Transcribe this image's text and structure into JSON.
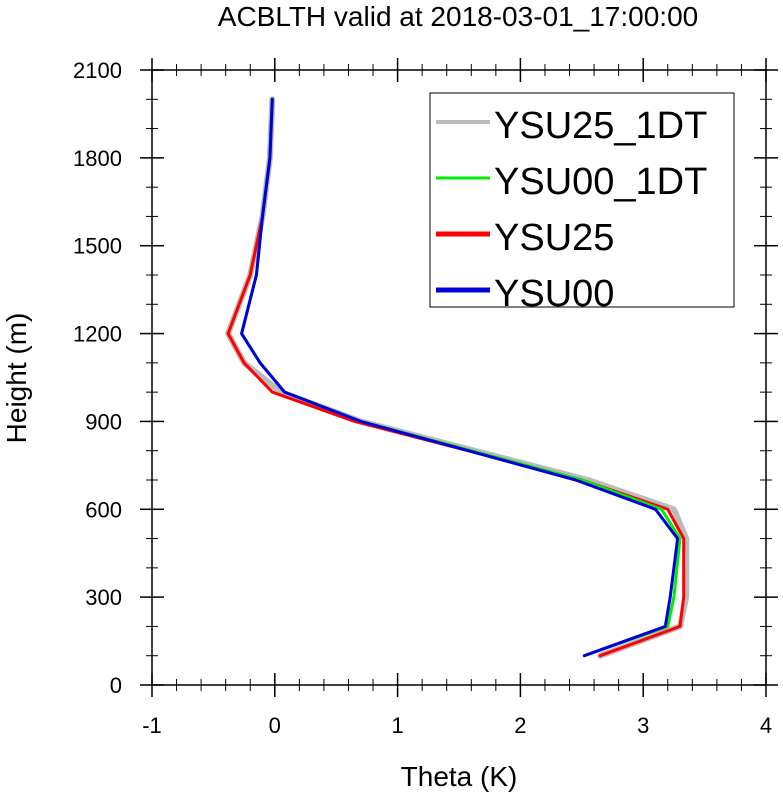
{
  "chart_data": {
    "type": "line",
    "title": "ACBLTH valid at 2018-03-01_17:00:00",
    "xlabel": "Theta (K)",
    "ylabel": "Height (m)",
    "xlim": [
      -1,
      4
    ],
    "ylim": [
      0,
      2100
    ],
    "xticks": [
      -1,
      0,
      1,
      2,
      3,
      4
    ],
    "xtick_labels": [
      "-1",
      "0",
      "1",
      "2",
      "3",
      "4"
    ],
    "yticks": [
      0,
      300,
      600,
      900,
      1200,
      1500,
      1800,
      2100
    ],
    "ytick_labels": [
      "0",
      "300",
      "600",
      "900",
      "1200",
      "1500",
      "1800",
      "2100"
    ],
    "grid": false,
    "legend_position": "top-right",
    "series": [
      {
        "name": "YSU25_1DT",
        "color": "#bbbbbb",
        "x": [
          -0.02,
          -0.04,
          -0.1,
          -0.2,
          -0.38,
          -0.25,
          0.05,
          0.7,
          2.55,
          3.25,
          3.35,
          3.35,
          3.3,
          2.65
        ],
        "y": [
          2000,
          1800,
          1600,
          1400,
          1200,
          1100,
          1000,
          900,
          700,
          600,
          500,
          300,
          200,
          100
        ]
      },
      {
        "name": "YSU00_1DT",
        "color": "#00ee00",
        "x": [
          -0.02,
          -0.04,
          -0.1,
          -0.15,
          -0.27,
          -0.12,
          0.08,
          0.7,
          2.5,
          3.15,
          3.3,
          3.25,
          3.2,
          2.52
        ],
        "y": [
          2000,
          1800,
          1600,
          1400,
          1200,
          1100,
          1000,
          900,
          700,
          600,
          500,
          300,
          200,
          100
        ]
      },
      {
        "name": "YSU25",
        "color": "#ff0000",
        "x": [
          -0.02,
          -0.04,
          -0.1,
          -0.2,
          -0.38,
          -0.25,
          -0.02,
          0.65,
          2.5,
          3.2,
          3.33,
          3.33,
          3.3,
          2.65
        ],
        "y": [
          2000,
          1800,
          1600,
          1400,
          1200,
          1100,
          1000,
          900,
          700,
          600,
          500,
          300,
          200,
          100
        ]
      },
      {
        "name": "YSU00",
        "color": "#0000dd",
        "x": [
          -0.02,
          -0.04,
          -0.1,
          -0.15,
          -0.27,
          -0.12,
          0.08,
          0.7,
          2.45,
          3.1,
          3.28,
          3.22,
          3.18,
          2.52
        ],
        "y": [
          2000,
          1800,
          1600,
          1400,
          1200,
          1100,
          1000,
          900,
          700,
          600,
          500,
          300,
          200,
          100
        ]
      }
    ]
  }
}
